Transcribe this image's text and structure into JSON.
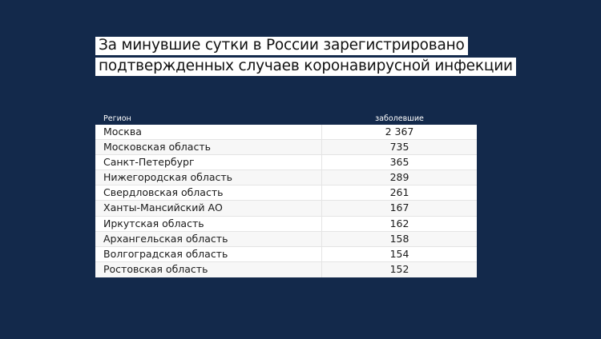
{
  "title": {
    "line1": "За минувшие сутки в России зарегистрировано",
    "line2": "подтвержденных случаев коронавирусной инфекции"
  },
  "table": {
    "headers": {
      "region": "Регион",
      "cases": "заболевшие"
    },
    "rows": [
      {
        "region": "Москва",
        "cases": "2 367"
      },
      {
        "region": "Московская область",
        "cases": "735"
      },
      {
        "region": "Санкт-Петербург",
        "cases": "365"
      },
      {
        "region": "Нижегородская область",
        "cases": "289"
      },
      {
        "region": "Свердловская область",
        "cases": "261"
      },
      {
        "region": "Ханты-Мансийский АО",
        "cases": "167"
      },
      {
        "region": "Иркутская область",
        "cases": "162"
      },
      {
        "region": "Архангельская область",
        "cases": "158"
      },
      {
        "region": "Волгоградская область",
        "cases": "154"
      },
      {
        "region": "Ростовская область",
        "cases": "152"
      }
    ]
  },
  "colors": {
    "background": "#13294b",
    "table_bg": "#ffffff",
    "row_alt": "#f7f7f7"
  }
}
